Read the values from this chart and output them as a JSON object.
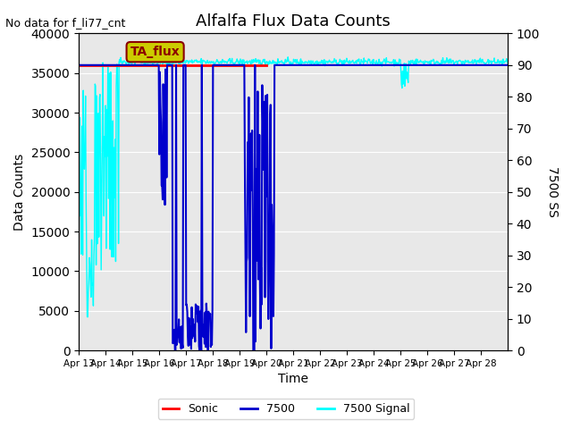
{
  "title": "Alfalfa Flux Data Counts",
  "no_data_text": "No data for f_li77_cnt",
  "ylabel_left": "Data Counts",
  "ylabel_right": "7500 SS",
  "xlabel": "Time",
  "legend_entries": [
    "Sonic",
    "7500",
    "7500 Signal"
  ],
  "legend_colors": [
    "red",
    "#0000cc",
    "cyan"
  ],
  "annotation_box": "TA_flux",
  "annotation_color": "#cccc00",
  "x_tick_labels": [
    "Apr 13",
    "Apr 14",
    "Apr 15",
    "Apr 16",
    "Apr 17",
    "Apr 18",
    "Apr 19",
    "Apr 20",
    "Apr 21",
    "Apr 22",
    "Apr 23",
    "Apr 24",
    "Apr 25",
    "Apr 26",
    "Apr 27",
    "Apr 28"
  ],
  "ylim_left": [
    0,
    40000
  ],
  "ylim_right": [
    0,
    100
  ],
  "yticks_left": [
    0,
    5000,
    10000,
    15000,
    20000,
    25000,
    30000,
    35000,
    40000
  ],
  "yticks_right": [
    0,
    10,
    20,
    30,
    40,
    50,
    60,
    70,
    80,
    90,
    100
  ],
  "background_color": "#e8e8e8",
  "sonic_color": "red",
  "cnt7500_color": "#0000cc",
  "signal_color": "cyan",
  "sonic_linewidth": 2.0,
  "cnt7500_linewidth": 1.5,
  "signal_linewidth": 1.0
}
